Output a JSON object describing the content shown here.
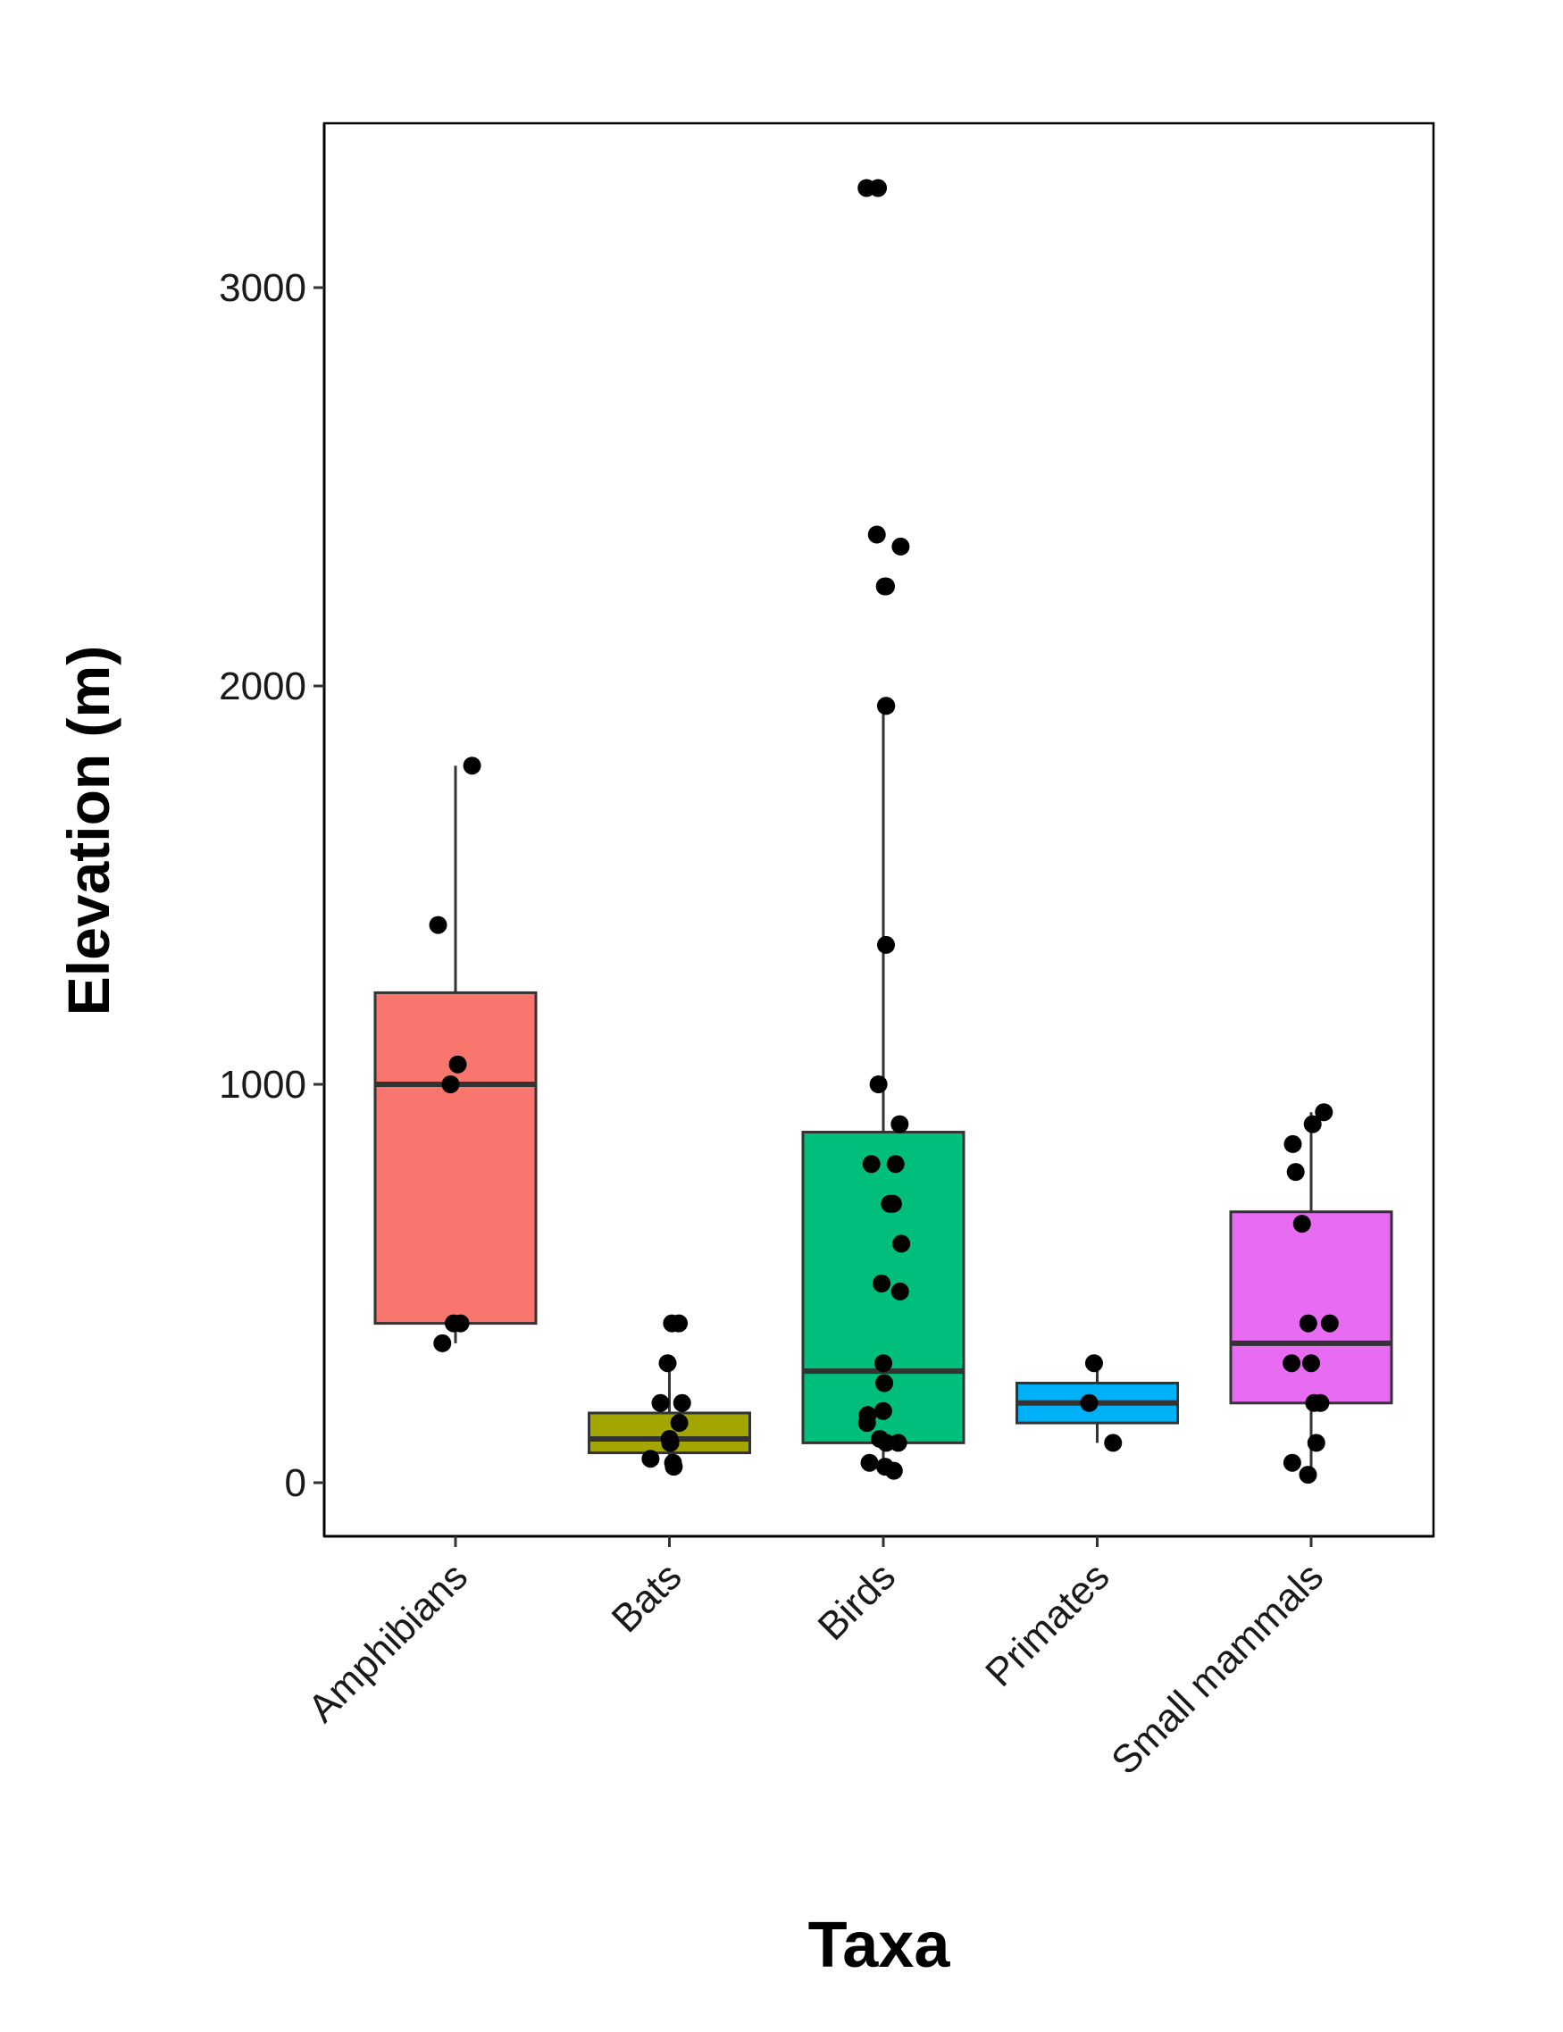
{
  "chart_data": {
    "type": "box",
    "xlabel": "Taxa",
    "ylabel": "Elevation (m)",
    "ylim": [
      -130,
      3410
    ],
    "yticks": [
      0,
      1000,
      2000,
      3000
    ],
    "grid": false,
    "legend": "none",
    "categories": [
      "Amphibians",
      "Bats",
      "Birds",
      "Primates",
      "Small mammals"
    ],
    "boxes": [
      {
        "category": "Amphibians",
        "color": "#F8766D",
        "min": 350,
        "q1": 400,
        "median": 1000,
        "q3": 1230,
        "max": 1800
      },
      {
        "category": "Bats",
        "color": "#A3A500",
        "min": 30,
        "q1": 75,
        "median": 110,
        "q3": 175,
        "max": 300
      },
      {
        "category": "Birds",
        "color": "#00BF7D",
        "min": 25,
        "q1": 100,
        "median": 280,
        "q3": 880,
        "max": 1950
      },
      {
        "category": "Primates",
        "color": "#00B0F6",
        "min": 100,
        "q1": 150,
        "median": 200,
        "q3": 250,
        "max": 300
      },
      {
        "category": "Small mammals",
        "color": "#E76BF3",
        "min": 25,
        "q1": 200,
        "median": 350,
        "q3": 680,
        "max": 930
      }
    ],
    "points": [
      {
        "category": "Amphibians",
        "values": [
          1800,
          1400,
          1050,
          1000,
          400,
          400,
          350
        ]
      },
      {
        "category": "Bats",
        "values": [
          400,
          400,
          300,
          200,
          200,
          150,
          110,
          100,
          100,
          60,
          50,
          40
        ]
      },
      {
        "category": "Birds",
        "values": [
          3250,
          3250,
          2380,
          2350,
          2250,
          2250,
          1950,
          1950,
          1350,
          1000,
          900,
          800,
          800,
          700,
          700,
          600,
          500,
          480,
          300,
          250,
          180,
          170,
          150,
          110,
          100,
          100,
          50,
          40,
          30
        ]
      },
      {
        "category": "Primates",
        "values": [
          300,
          200,
          100
        ]
      },
      {
        "category": "Small mammals",
        "values": [
          930,
          900,
          850,
          780,
          650,
          400,
          400,
          300,
          300,
          200,
          200,
          100,
          50,
          20
        ]
      }
    ]
  }
}
